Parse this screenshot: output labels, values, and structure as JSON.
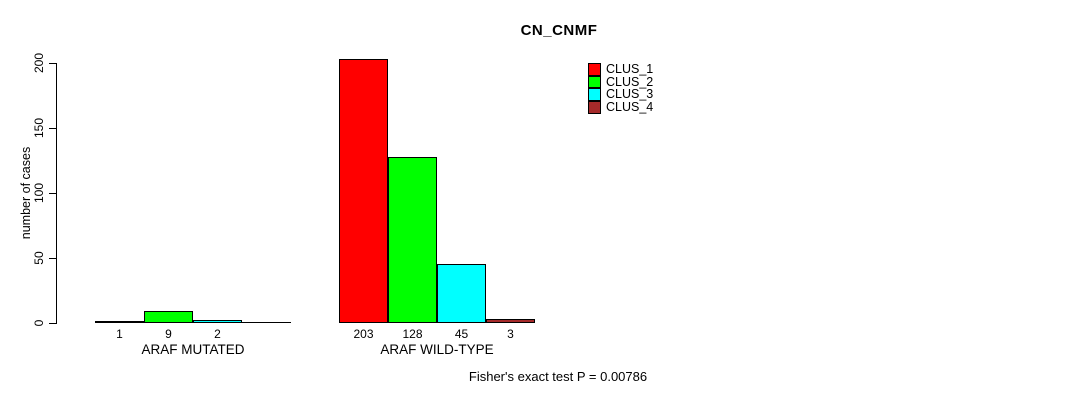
{
  "chart_data": {
    "type": "bar",
    "title": "CN_CNMF",
    "ylabel": "number of cases",
    "ylim": [
      0,
      200
    ],
    "yticks": [
      0,
      50,
      100,
      150,
      200
    ],
    "grid": false,
    "legend": {
      "position": "top-right",
      "entries": [
        {
          "label": "CLUS_1",
          "color": "#FF0000"
        },
        {
          "label": "CLUS_2",
          "color": "#00FF00"
        },
        {
          "label": "CLUS_3",
          "color": "#00FFFF"
        },
        {
          "label": "CLUS_4",
          "color": "#A52A2A"
        }
      ]
    },
    "groups": [
      {
        "label": "ARAF MUTATED",
        "values": [
          1,
          9,
          2,
          0
        ],
        "value_labels": [
          "1",
          "9",
          "2",
          ""
        ]
      },
      {
        "label": "ARAF WILD-TYPE",
        "values": [
          203,
          128,
          45,
          3
        ],
        "value_labels": [
          "203",
          "128",
          "45",
          "3"
        ]
      }
    ],
    "footer": "Fisher's exact test P = 0.00786"
  }
}
